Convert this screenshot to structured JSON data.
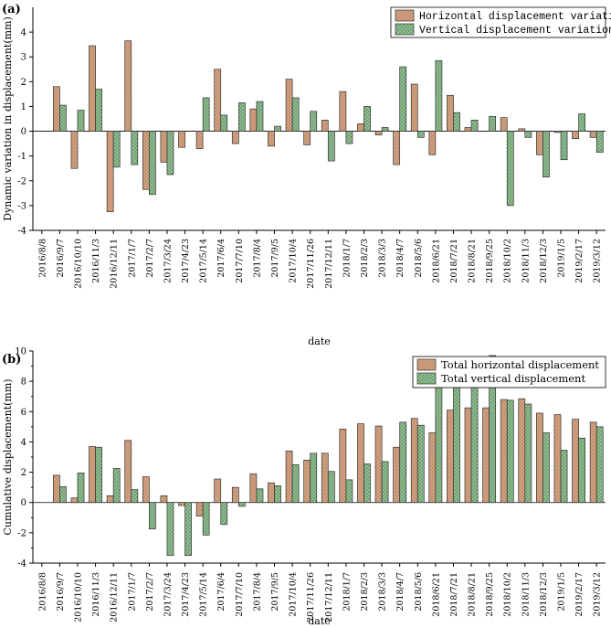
{
  "chart_data": [
    {
      "panel_label": "(a)",
      "type": "bar",
      "ylabel": "Dynamic variation in displacement(mm)",
      "xlabel": "date",
      "ylim": [
        -4,
        5
      ],
      "yticks": [
        "-4",
        "-3",
        "-2",
        "-1",
        "0",
        "1",
        "2",
        "3",
        "4"
      ],
      "legend_position": "top-right",
      "tick_labels": [
        "2016/8/8",
        "2016/9/7",
        "2016/10/10",
        "2016/11/3",
        "2016/12/11",
        "2017/1/7",
        "2017/2/7",
        "2017/3/24",
        "2017/4/23",
        "2017/5/14",
        "2017/6/4",
        "2017/7/10",
        "2017/8/4",
        "2017/9/5",
        "2017/10/4",
        "2017/11/26",
        "2017/12/11",
        "2018/1/7",
        "2018/2/3",
        "2018/3/3",
        "2018/4/7",
        "2018/5/6",
        "2018/6/21",
        "2018/7/21",
        "2018/8/21",
        "2018/9/25",
        "2018/10/2",
        "2018/11/3",
        "2018/12/3",
        "2019/1/5",
        "2019/2/17",
        "2019/3/12"
      ],
      "series": [
        {
          "name": "Horizontal displacement variation",
          "color": "#e8803a",
          "values": [
            0,
            1.8,
            -1.5,
            3.45,
            -3.25,
            3.65,
            -2.35,
            -1.25,
            -0.65,
            -0.7,
            2.5,
            -0.5,
            0.9,
            -0.6,
            2.1,
            -0.55,
            0.45,
            1.6,
            0.3,
            -0.15,
            -1.35,
            1.9,
            -0.95,
            1.45,
            0.15,
            0,
            0.55,
            0.1,
            -0.95,
            -0.05,
            -0.3,
            -0.25
          ]
        },
        {
          "name": "Vertical displacement variation",
          "color": "#4caf50",
          "values": [
            0,
            1.05,
            0.85,
            1.7,
            -1.45,
            -1.35,
            -2.55,
            -1.75,
            0,
            1.35,
            0.65,
            1.15,
            1.2,
            0.2,
            1.35,
            0.8,
            -1.2,
            -0.5,
            1.0,
            0.15,
            2.6,
            -0.25,
            2.85,
            0.75,
            0.45,
            0.6,
            -3.0,
            -0.25,
            -1.85,
            -1.15,
            0.7,
            -0.85
          ]
        }
      ]
    },
    {
      "panel_label": "(b)",
      "type": "bar",
      "ylabel": "Cumulative displacement(mm)",
      "xlabel": "date",
      "ylim": [
        -4,
        10
      ],
      "yticks": [
        "-4",
        "-2",
        "0",
        "2",
        "4",
        "6",
        "8",
        "10"
      ],
      "legend_position": "top-right",
      "tick_labels": [
        "2016/8/8",
        "2016/9/7",
        "2016/10/10",
        "2016/11/3",
        "2016/12/11",
        "2017/1/7",
        "2017/2/7",
        "2017/3/24",
        "2017/4/23",
        "2017/5/14",
        "2017/6/4",
        "2017/7/10",
        "2017/8/4",
        "2017/9/5",
        "2017/10/4",
        "2017/11/26",
        "2017/12/11",
        "2018/1/7",
        "2018/2/3",
        "2018/3/3",
        "2018/4/7",
        "2018/5/6",
        "2018/6/21",
        "2018/7/21",
        "2018/8/21",
        "2018/9/25",
        "2018/10/2",
        "2018/11/3",
        "2018/12/3",
        "2019/1/5",
        "2019/2/17",
        "2019/3/12"
      ],
      "series": [
        {
          "name": "Total horizontal displacement",
          "color": "#e8803a",
          "values": [
            0,
            1.8,
            0.3,
            3.7,
            0.45,
            4.1,
            1.7,
            0.45,
            -0.2,
            -0.9,
            1.55,
            1.0,
            1.9,
            1.3,
            3.4,
            2.8,
            3.25,
            4.85,
            5.2,
            5.05,
            3.65,
            5.55,
            4.6,
            6.1,
            6.25,
            6.25,
            6.8,
            6.85,
            5.9,
            5.8,
            5.5,
            5.3
          ]
        },
        {
          "name": "Total vertical displacement",
          "color": "#4caf50",
          "values": [
            0,
            1.05,
            1.95,
            3.65,
            2.25,
            0.85,
            -1.75,
            -3.5,
            -3.5,
            -2.15,
            -1.45,
            -0.25,
            0.9,
            1.1,
            2.5,
            3.25,
            2.05,
            1.5,
            2.55,
            2.7,
            5.3,
            5.1,
            7.95,
            8.65,
            9.1,
            9.7,
            6.75,
            6.5,
            4.6,
            3.45,
            4.25,
            5.0
          ]
        }
      ]
    }
  ]
}
